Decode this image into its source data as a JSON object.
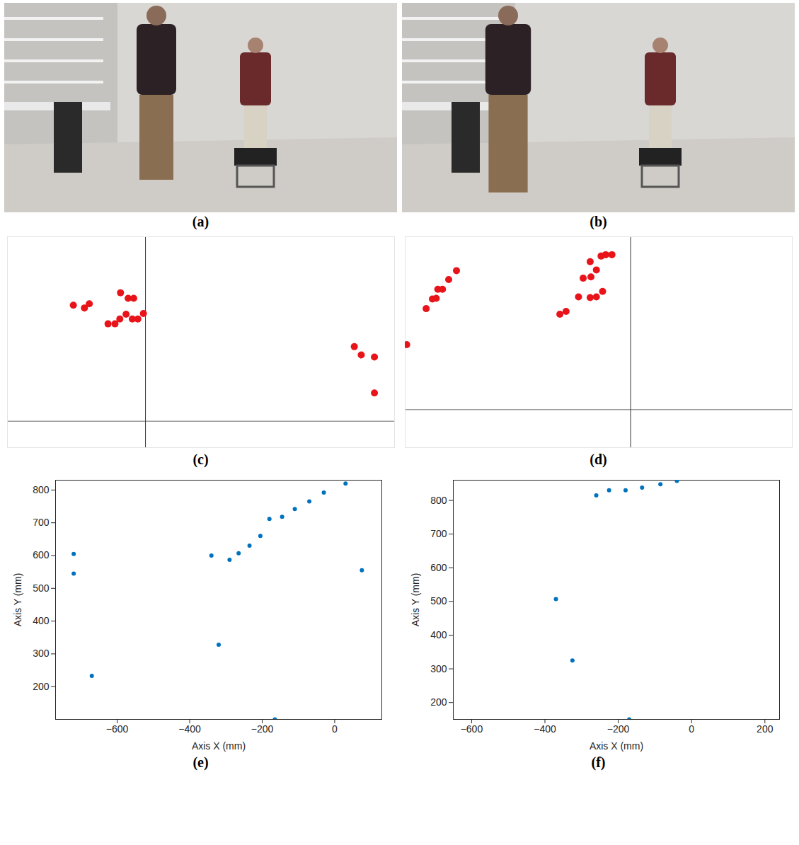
{
  "chart_data": [
    {
      "type": "image",
      "title": "(a)"
    },
    {
      "type": "image",
      "title": "(b)"
    },
    {
      "type": "scatter",
      "title": "(c)",
      "color": "#e8141a",
      "marker": "circle",
      "tick_labels": false,
      "grid": true,
      "xlim": [
        -199,
        359
      ],
      "ylim": [
        -38,
        267
      ],
      "xticks": [
        0
      ],
      "yticks": [
        0
      ],
      "x": [
        -104,
        -88,
        -81,
        -36,
        -25,
        -17,
        -54,
        -44,
        -37,
        -28,
        -19,
        -11,
        -3,
        301,
        311,
        330,
        330
      ],
      "values": [
        168,
        164,
        170,
        186,
        178,
        178,
        141,
        141,
        148,
        155,
        148,
        148,
        156,
        108,
        96,
        93,
        41
      ]
    },
    {
      "type": "scatter",
      "title": "(d)",
      "color": "#e8141a",
      "marker": "circle",
      "tick_labels": false,
      "grid": true,
      "xlim": [
        -290,
        208
      ],
      "ylim": [
        -55,
        250
      ],
      "xticks": [
        0
      ],
      "yticks": [
        0
      ],
      "x": [
        -288,
        -263,
        -255,
        -250,
        -248,
        -242,
        -234,
        -224,
        -52,
        -44,
        -38,
        -32,
        -24,
        -61,
        -51,
        -67,
        -52,
        -44,
        -36,
        -91,
        -83
      ],
      "values": [
        94,
        146,
        160,
        161,
        174,
        174,
        188,
        201,
        214,
        202,
        222,
        224,
        224,
        190,
        192,
        163,
        162,
        163,
        171,
        138,
        142
      ]
    },
    {
      "type": "scatter",
      "title": "(e)",
      "color": "#0072bd",
      "marker": "circle",
      "grid": false,
      "x_label": "Axis X (mm)",
      "y_label": "Axis Y (mm)",
      "xlim": [
        -770,
        130
      ],
      "ylim": [
        100,
        830
      ],
      "xticks": [
        -600,
        -400,
        -200,
        0
      ],
      "yticks": [
        200,
        300,
        400,
        500,
        600,
        700,
        800
      ],
      "x": [
        -720,
        -720,
        -670,
        -340,
        -320,
        -290,
        -265,
        -235,
        -205,
        -180,
        -145,
        -110,
        -70,
        -30,
        30,
        75,
        -165
      ],
      "values": [
        605,
        545,
        233,
        600,
        328,
        587,
        607,
        630,
        660,
        712,
        718,
        742,
        765,
        792,
        820,
        555,
        100
      ]
    },
    {
      "type": "scatter",
      "title": "(f)",
      "color": "#0072bd",
      "marker": "circle",
      "grid": false,
      "x_label": "Axis X (mm)",
      "y_label": "Axis Y (mm)",
      "xlim": [
        -650,
        240
      ],
      "ylim": [
        150,
        860
      ],
      "xticks": [
        -600,
        -400,
        -200,
        0,
        200
      ],
      "yticks": [
        200,
        300,
        400,
        500,
        600,
        700,
        800
      ],
      "x": [
        -260,
        -225,
        -180,
        -135,
        -85,
        -40,
        -370,
        -325,
        -170
      ],
      "values": [
        815,
        830,
        830,
        838,
        848,
        858,
        507,
        325,
        150
      ]
    }
  ]
}
